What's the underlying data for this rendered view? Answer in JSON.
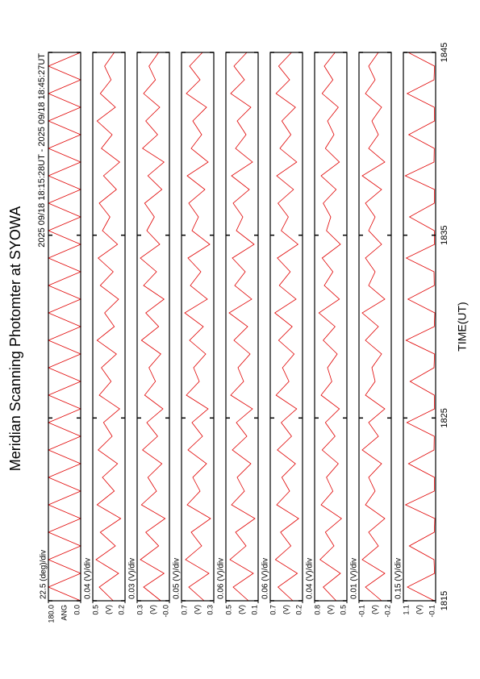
{
  "chart_data": {
    "type": "line",
    "title": "Meridian Scanning Photomter at SYOWA",
    "subtitle": "2025 09/18 18:15:28UT - 2025 09/18 18:45:27UT",
    "xlabel": "TIME(UT)",
    "color": "#e00000",
    "xlim": [
      1815,
      1845
    ],
    "xticks": [
      1815,
      1825,
      1835,
      1845
    ],
    "x": [
      1815,
      1815.75,
      1816.5,
      1817.25,
      1818,
      1818.75,
      1819.5,
      1820.25,
      1821,
      1821.75,
      1822.5,
      1823.25,
      1824,
      1824.75,
      1825.5,
      1826.25,
      1827,
      1827.75,
      1828.5,
      1829.25,
      1830,
      1830.75,
      1831.5,
      1832.25,
      1833,
      1833.75,
      1834.5,
      1835.25,
      1836,
      1836.75,
      1837.5,
      1838.25,
      1839,
      1839.75,
      1840.5,
      1841.25,
      1842,
      1842.75,
      1843.5,
      1844.25,
      1845
    ],
    "panels": [
      {
        "scale_label": "22.5 (deg)/div",
        "unit_label": "ANG",
        "ylim": [
          0,
          180
        ],
        "yticks": [
          {
            "value": 0,
            "label": "0.0"
          },
          {
            "value": 180,
            "label": "180.0"
          }
        ],
        "values": [
          0,
          180,
          0,
          180,
          0,
          180,
          0,
          180,
          0,
          180,
          0,
          180,
          0,
          180,
          0,
          180,
          0,
          180,
          0,
          180,
          0,
          180,
          0,
          180,
          0,
          180,
          0,
          180,
          0,
          180,
          0,
          180,
          0,
          180,
          0,
          180,
          0,
          180,
          0,
          180,
          0
        ]
      },
      {
        "scale_label": "0.04 (V)/div",
        "unit_label": "(V)",
        "ylim": [
          0.2,
          0.5
        ],
        "yticks": [
          0.2,
          0.5
        ],
        "values": [
          0.31,
          0.44,
          0.26,
          0.47,
          0.29,
          0.43,
          0.24,
          0.46,
          0.3,
          0.41,
          0.27,
          0.45,
          0.32,
          0.4,
          0.25,
          0.44,
          0.33,
          0.42,
          0.28,
          0.46,
          0.3,
          0.39,
          0.26,
          0.43,
          0.31,
          0.45,
          0.27,
          0.41,
          0.34,
          0.44,
          0.28,
          0.4,
          0.25,
          0.42,
          0.32,
          0.46,
          0.29,
          0.43,
          0.33,
          0.39,
          0.3
        ]
      },
      {
        "scale_label": "0.03 (V)/div",
        "unit_label": "(V)",
        "ylim": [
          0,
          0.3
        ],
        "yticks": [
          {
            "value": 0,
            "label": "-0.0"
          },
          0.3
        ],
        "values": [
          0.08,
          0.24,
          0.05,
          0.27,
          0.1,
          0.22,
          0.04,
          0.26,
          0.12,
          0.2,
          0.07,
          0.25,
          0.11,
          0.21,
          0.06,
          0.23,
          0.13,
          0.19,
          0.08,
          0.26,
          0.1,
          0.22,
          0.05,
          0.24,
          0.12,
          0.27,
          0.09,
          0.21,
          0.14,
          0.23,
          0.07,
          0.2,
          0.05,
          0.25,
          0.11,
          0.22,
          0.09,
          0.24,
          0.13,
          0.19,
          0.1
        ]
      },
      {
        "scale_label": "0.05 (V)/div",
        "unit_label": "(V)",
        "ylim": [
          0.3,
          0.7
        ],
        "yticks": [
          0.3,
          0.7
        ],
        "values": [
          0.42,
          0.61,
          0.36,
          0.65,
          0.45,
          0.58,
          0.34,
          0.63,
          0.47,
          0.56,
          0.39,
          0.62,
          0.44,
          0.57,
          0.37,
          0.64,
          0.48,
          0.55,
          0.4,
          0.6,
          0.43,
          0.66,
          0.38,
          0.59,
          0.46,
          0.62,
          0.35,
          0.57,
          0.49,
          0.61,
          0.41,
          0.63,
          0.37,
          0.58,
          0.45,
          0.56,
          0.39,
          0.64,
          0.47,
          0.6,
          0.44
        ]
      },
      {
        "scale_label": "0.06 (V)/div",
        "unit_label": "(V)",
        "ylim": [
          0.1,
          0.5
        ],
        "yticks": [
          0.1,
          0.5
        ],
        "values": [
          0.22,
          0.41,
          0.16,
          0.45,
          0.25,
          0.38,
          0.14,
          0.43,
          0.27,
          0.36,
          0.19,
          0.42,
          0.24,
          0.37,
          0.17,
          0.44,
          0.28,
          0.35,
          0.2,
          0.4,
          0.23,
          0.46,
          0.18,
          0.39,
          0.26,
          0.42,
          0.15,
          0.37,
          0.29,
          0.41,
          0.21,
          0.43,
          0.17,
          0.38,
          0.25,
          0.36,
          0.19,
          0.44,
          0.27,
          0.4,
          0.24
        ]
      },
      {
        "scale_label": "0.06 (V)/div",
        "unit_label": "(V)",
        "ylim": [
          0.2,
          0.7
        ],
        "yticks": [
          0.2,
          0.7
        ],
        "values": [
          0.35,
          0.58,
          0.28,
          0.62,
          0.38,
          0.54,
          0.26,
          0.6,
          0.4,
          0.52,
          0.31,
          0.59,
          0.37,
          0.53,
          0.29,
          0.61,
          0.41,
          0.51,
          0.33,
          0.57,
          0.36,
          0.63,
          0.3,
          0.56,
          0.39,
          0.59,
          0.27,
          0.53,
          0.42,
          0.58,
          0.34,
          0.6,
          0.29,
          0.55,
          0.38,
          0.52,
          0.31,
          0.61,
          0.4,
          0.57,
          0.37
        ]
      },
      {
        "scale_label": "0.04 (V)/div",
        "unit_label": "(V)",
        "ylim": [
          0.5,
          0.8
        ],
        "yticks": [
          0.5,
          0.8
        ],
        "values": [
          0.6,
          0.72,
          0.56,
          0.75,
          0.62,
          0.7,
          0.55,
          0.74,
          0.63,
          0.69,
          0.58,
          0.73,
          0.61,
          0.7,
          0.57,
          0.74,
          0.64,
          0.68,
          0.59,
          0.72,
          0.61,
          0.76,
          0.57,
          0.71,
          0.63,
          0.73,
          0.56,
          0.69,
          0.65,
          0.72,
          0.6,
          0.74,
          0.57,
          0.7,
          0.62,
          0.68,
          0.58,
          0.73,
          0.63,
          0.71,
          0.61
        ]
      },
      {
        "scale_label": "0.01 (V)/div",
        "unit_label": "(V)",
        "ylim": [
          -0.2,
          -0.1
        ],
        "yticks": [
          -0.2,
          -0.1
        ],
        "values": [
          -0.17,
          -0.12,
          -0.18,
          -0.11,
          -0.16,
          -0.13,
          -0.18,
          -0.12,
          -0.15,
          -0.13,
          -0.17,
          -0.11,
          -0.16,
          -0.13,
          -0.18,
          -0.12,
          -0.15,
          -0.14,
          -0.17,
          -0.12,
          -0.16,
          -0.11,
          -0.18,
          -0.13,
          -0.15,
          -0.12,
          -0.17,
          -0.13,
          -0.15,
          -0.12,
          -0.17,
          -0.11,
          -0.18,
          -0.13,
          -0.16,
          -0.14,
          -0.17,
          -0.12,
          -0.15,
          -0.13,
          -0.16
        ]
      },
      {
        "scale_label": "0.15 (V)/div",
        "unit_label": "(V)",
        "ylim": [
          -0.1,
          1.1
        ],
        "yticks": [
          -0.1,
          1.1
        ],
        "values": [
          -0.05,
          0.95,
          -0.06,
          -0.04,
          0.88,
          -0.05,
          -0.07,
          1.02,
          -0.05,
          -0.06,
          0.91,
          -0.04,
          -0.05,
          0.97,
          -0.06,
          -0.05,
          0.85,
          -0.04,
          -0.06,
          1.0,
          -0.05,
          -0.07,
          0.93,
          -0.05,
          -0.04,
          0.99,
          -0.06,
          -0.05,
          0.87,
          -0.05,
          -0.06,
          1.03,
          -0.04,
          -0.05,
          0.9,
          -0.06,
          -0.05,
          0.96,
          -0.04,
          -0.06,
          0.92
        ]
      }
    ]
  }
}
